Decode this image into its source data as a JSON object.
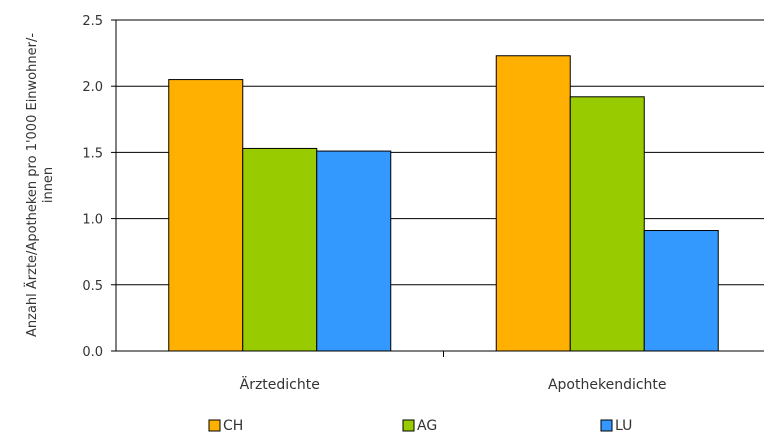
{
  "chart_data": {
    "type": "bar",
    "categories": [
      "Ärztedichte",
      "Apothekendichte"
    ],
    "series": [
      {
        "name": "CH",
        "color": "#FFB000",
        "values": [
          2.05,
          2.23
        ]
      },
      {
        "name": "AG",
        "color": "#99CC00",
        "values": [
          1.53,
          1.92
        ]
      },
      {
        "name": "LU",
        "color": "#3399FF",
        "values": [
          1.51,
          0.91
        ]
      }
    ],
    "yticks": [
      "0.0",
      "0.5",
      "1.0",
      "1.5",
      "2.0",
      "2.5"
    ],
    "ylim": [
      0,
      2.5
    ],
    "ylabel_lines": [
      "Anzahl Ärzte/Apotheken pro 1'000 Einwohner/-",
      "innen"
    ],
    "xlabel": "",
    "grid": "horizontal",
    "legend_position": "bottom"
  }
}
